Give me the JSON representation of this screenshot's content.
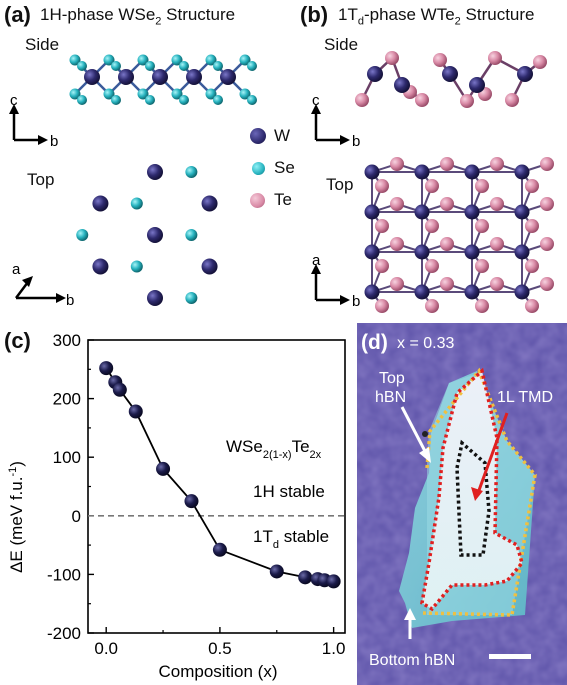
{
  "panel_a": {
    "label": "(a)",
    "title_pre": "1H-phase WSe",
    "title_sub": "2",
    "title_post": " Structure",
    "side": "Side",
    "top": "Top",
    "axis_side": {
      "v": "c",
      "h": "b"
    },
    "axis_top": {
      "v": "a",
      "h": "b"
    }
  },
  "panel_b": {
    "label": "(b)",
    "title_pre": "1T",
    "title_sub1": "d",
    "title_mid": "-phase WTe",
    "title_sub2": "2",
    "title_post": " Structure",
    "side": "Side",
    "top": "Top",
    "axis_side": {
      "v": "c",
      "h": "b"
    },
    "axis_top": {
      "v": "a",
      "h": "b"
    }
  },
  "legend": [
    {
      "label": "W",
      "color": "#2e2a6e"
    },
    {
      "label": "Se",
      "color": "#27b3bf"
    },
    {
      "label": "Te",
      "color": "#d98aa6"
    }
  ],
  "panel_c": {
    "label": "(c)",
    "formula_pre": "WSe",
    "formula_sub1": "2(1-x)",
    "formula_mid": "Te",
    "formula_sub2": "2x",
    "stable_1h": "1H stable",
    "stable_1t_pre": "1T",
    "stable_1t_sub": "d",
    "stable_1t_post": " stable",
    "ylabel_pre": "ΔE (meV f.u.",
    "ylabel_sup": "-1",
    "ylabel_post": ")",
    "xlabel": "Composition (x)"
  },
  "chart_data": {
    "type": "line",
    "xlabel": "Composition (x)",
    "ylabel": "ΔE (meV f.u.-1)",
    "xlim": [
      -0.08,
      1.05
    ],
    "ylim": [
      -200,
      300
    ],
    "xticks": [
      "0.0",
      "0.5",
      "1.0"
    ],
    "xtick_values": [
      0,
      0.5,
      1.0
    ],
    "yticks": [
      "300",
      "200",
      "100",
      "0",
      "-100",
      "-200"
    ],
    "ytick_values": [
      300,
      200,
      100,
      0,
      -100,
      -200
    ],
    "reference_line": 0,
    "series": [
      {
        "x": [
          0.0,
          0.04,
          0.06,
          0.13,
          0.25,
          0.375,
          0.5,
          0.75,
          0.875,
          0.93,
          0.96,
          1.0
        ],
        "y": [
          252,
          228,
          215,
          178,
          80,
          25,
          -58,
          -95,
          -105,
          -108,
          -110,
          -112
        ]
      }
    ],
    "marker_color": "#1b1b4a"
  },
  "panel_d": {
    "label": "(d)",
    "x_text": "x = 0.33",
    "top_hbn_1": "Top",
    "top_hbn_2": "hBN",
    "tmd": "1L TMD",
    "bottom_hbn": "Bottom hBN"
  }
}
